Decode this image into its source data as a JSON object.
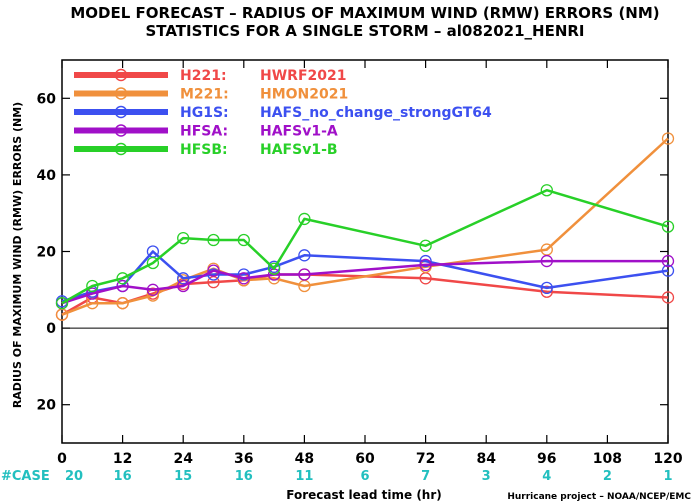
{
  "chart_data": {
    "type": "line",
    "title": "MODEL FORECAST – RADIUS OF MAXIMUM WIND (RMW) ERRORS (NM)",
    "subtitle": "STATISTICS FOR A SINGLE STORM – al082021_HENRI",
    "xlabel": "Forecast lead time (hr)",
    "ylabel": "RADIUS OF MAXIMUM WIND (RMW) ERRORS (NM)",
    "xlim": [
      0,
      120
    ],
    "ylim": [
      -30,
      70
    ],
    "xticks": [
      0,
      12,
      24,
      36,
      48,
      60,
      72,
      84,
      96,
      108,
      120
    ],
    "yticks": [
      -20,
      0,
      20,
      40,
      60
    ],
    "ytick_labels": [
      "20",
      "0",
      "20",
      "40",
      "60"
    ],
    "zero_line": true,
    "grid": false,
    "legend_position": "top-left",
    "case_label": "#CASE",
    "case_counts": [
      {
        "x": 0,
        "label": "20"
      },
      {
        "x": 12,
        "label": "16"
      },
      {
        "x": 24,
        "label": "15"
      },
      {
        "x": 36,
        "label": "16"
      },
      {
        "x": 48,
        "label": "11"
      },
      {
        "x": 60,
        "label": "6"
      },
      {
        "x": 72,
        "label": "7"
      },
      {
        "x": 84,
        "label": "3"
      },
      {
        "x": 96,
        "label": "4"
      },
      {
        "x": 108,
        "label": "2"
      },
      {
        "x": 120,
        "label": "1"
      }
    ],
    "series": [
      {
        "code": "H221",
        "name": "HWRF2021",
        "color": "#f04848",
        "x": [
          0,
          6,
          12,
          18,
          24,
          30,
          36,
          42,
          48,
          72,
          96,
          120
        ],
        "y": [
          3.5,
          8,
          6.5,
          9,
          11.5,
          12,
          12.5,
          14,
          14,
          13,
          9.5,
          8
        ]
      },
      {
        "code": "M221",
        "name": "HMON2021",
        "color": "#f0903c",
        "x": [
          0,
          6,
          12,
          18,
          24,
          30,
          36,
          42,
          48,
          72,
          96,
          120
        ],
        "y": [
          3.5,
          6.5,
          6.5,
          8.5,
          12.5,
          15.5,
          12.5,
          13,
          11,
          16,
          20.5,
          49.5
        ]
      },
      {
        "code": "HG1S",
        "name": "HAFS_no_change_strongGT64",
        "color": "#3c50f0",
        "x": [
          0,
          6,
          12,
          18,
          24,
          30,
          36,
          42,
          48,
          72,
          96,
          120
        ],
        "y": [
          7,
          9.5,
          11,
          20,
          13,
          14,
          14,
          16,
          19,
          17.5,
          10.5,
          15
        ]
      },
      {
        "code": "HFSA",
        "name": "HAFSv1-A",
        "color": "#a010c8",
        "x": [
          0,
          6,
          12,
          18,
          24,
          30,
          36,
          42,
          48,
          72,
          96,
          120
        ],
        "y": [
          6.5,
          9,
          11,
          10,
          11,
          15,
          13,
          14,
          14,
          16.5,
          17.5,
          17.5
        ]
      },
      {
        "code": "HFSB",
        "name": "HAFSv1-B",
        "color": "#28d028",
        "x": [
          0,
          6,
          12,
          18,
          24,
          30,
          36,
          42,
          48,
          72,
          96,
          120
        ],
        "y": [
          6.5,
          11,
          13,
          17,
          23.5,
          23,
          23,
          15.5,
          28.5,
          21.5,
          36,
          26.5
        ]
      }
    ],
    "credit": "Hurricane project – NOAA/NCEP/EMC"
  }
}
